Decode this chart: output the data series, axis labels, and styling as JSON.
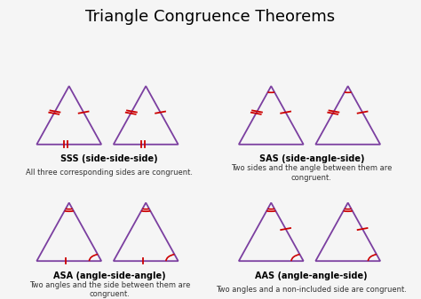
{
  "title": "Triangle Congruence Theorems",
  "title_fontsize": 13,
  "label_fontsize": 7,
  "desc_fontsize": 6,
  "bg_color": "#f5f5f5",
  "border_color": "#333333",
  "triangle_color": "#7B3FA0",
  "mark_color": "#CC0000",
  "cells": [
    {
      "label": "SSS (side-side-side)",
      "description": "All three corresponding sides are congruent.",
      "type": "SSS"
    },
    {
      "label": "SAS (side-angle-side)",
      "description": "Two sides and the angle between them are\ncongruent.",
      "type": "SAS"
    },
    {
      "label": "ASA (angle-side-angle)",
      "description": "Two angles and the side between them are\ncongruent.",
      "type": "ASA"
    },
    {
      "label": "AAS (angle-angle-side)",
      "description": "Two angles and a non-included side are congruent.",
      "type": "AAS"
    }
  ]
}
